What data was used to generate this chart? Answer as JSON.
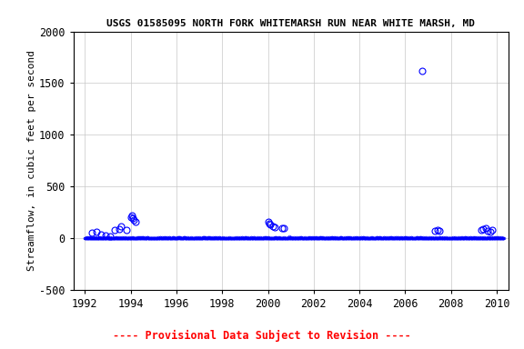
{
  "title": "USGS 01585095 NORTH FORK WHITEMARSH RUN NEAR WHITE MARSH, MD",
  "ylabel": "Streamflow, in cubic feet per second",
  "xlabel_ticks": [
    1992,
    1994,
    1996,
    1998,
    2000,
    2002,
    2004,
    2006,
    2008,
    2010
  ],
  "xlim": [
    1991.5,
    2010.5
  ],
  "ylim": [
    -500,
    2000
  ],
  "yticks": [
    -500,
    0,
    500,
    1000,
    1500,
    2000
  ],
  "marker_color": "#0000FF",
  "background_color": "#ffffff",
  "title_fontsize": 8.0,
  "axis_fontsize": 8.0,
  "tick_fontsize": 8.5,
  "provisional_fontsize": 8.5,
  "provisional_text": "---- Provisional Data Subject to Revision ----",
  "provisional_color": "#FF0000",
  "sparse_points": [
    [
      1992.3,
      55
    ],
    [
      1992.5,
      60
    ],
    [
      1992.7,
      30
    ],
    [
      1992.9,
      25
    ],
    [
      1993.1,
      15
    ],
    [
      1993.3,
      75
    ],
    [
      1993.5,
      90
    ],
    [
      1993.6,
      110
    ],
    [
      1993.8,
      80
    ],
    [
      1994.0,
      200
    ],
    [
      1994.05,
      215
    ],
    [
      1994.1,
      190
    ],
    [
      1994.15,
      175
    ],
    [
      1994.2,
      160
    ],
    [
      2000.0,
      155
    ],
    [
      2000.05,
      140
    ],
    [
      2000.1,
      130
    ],
    [
      2000.2,
      110
    ],
    [
      2000.3,
      105
    ],
    [
      2000.6,
      100
    ],
    [
      2000.7,
      95
    ],
    [
      2006.75,
      1620
    ],
    [
      2007.3,
      65
    ],
    [
      2007.4,
      80
    ],
    [
      2007.5,
      70
    ],
    [
      2009.3,
      80
    ],
    [
      2009.4,
      90
    ],
    [
      2009.5,
      100
    ],
    [
      2009.6,
      70
    ],
    [
      2009.7,
      60
    ],
    [
      2009.8,
      80
    ]
  ]
}
